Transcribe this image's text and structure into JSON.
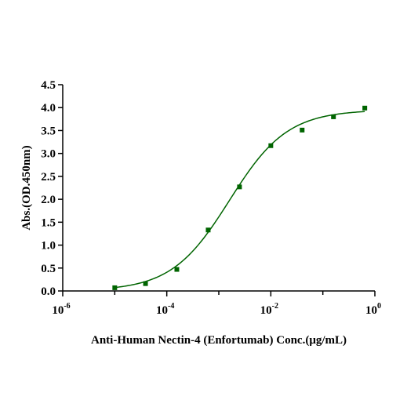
{
  "chart_data": {
    "type": "scatter",
    "title": "",
    "xlabel": "Anti-Human Nectin-4 (Enfortumab) Conc.(μg/mL)",
    "ylabel": "Abs.(OD.450nm)",
    "x_scale": "log",
    "xlim": [
      1e-06,
      1
    ],
    "ylim": [
      0,
      4.5
    ],
    "x_ticks": [
      {
        "base": "10",
        "exp": "-6",
        "value": 1e-06
      },
      {
        "base": "10",
        "exp": "-4",
        "value": 0.0001
      },
      {
        "base": "10",
        "exp": "-2",
        "value": 0.01
      },
      {
        "base": "10",
        "exp": "0",
        "value": 1
      }
    ],
    "y_ticks": [
      "0.0",
      "0.5",
      "1.0",
      "1.5",
      "2.0",
      "2.5",
      "3.0",
      "3.5",
      "4.0",
      "4.5"
    ],
    "grid": false,
    "series": [
      {
        "marker": "square",
        "color": "#006400",
        "points": [
          {
            "x": 1e-05,
            "y": 0.07
          },
          {
            "x": 3.9e-05,
            "y": 0.16
          },
          {
            "x": 0.000156,
            "y": 0.47
          },
          {
            "x": 0.000625,
            "y": 1.33
          },
          {
            "x": 0.0025,
            "y": 2.27
          },
          {
            "x": 0.01,
            "y": 3.17
          },
          {
            "x": 0.04,
            "y": 3.51
          },
          {
            "x": 0.16,
            "y": 3.8
          },
          {
            "x": 0.64,
            "y": 3.99
          }
        ],
        "fit": {
          "model": "4PL",
          "bottom": 0.0,
          "top": 3.95,
          "ec50": 0.0016,
          "hill": 0.78
        }
      }
    ]
  }
}
